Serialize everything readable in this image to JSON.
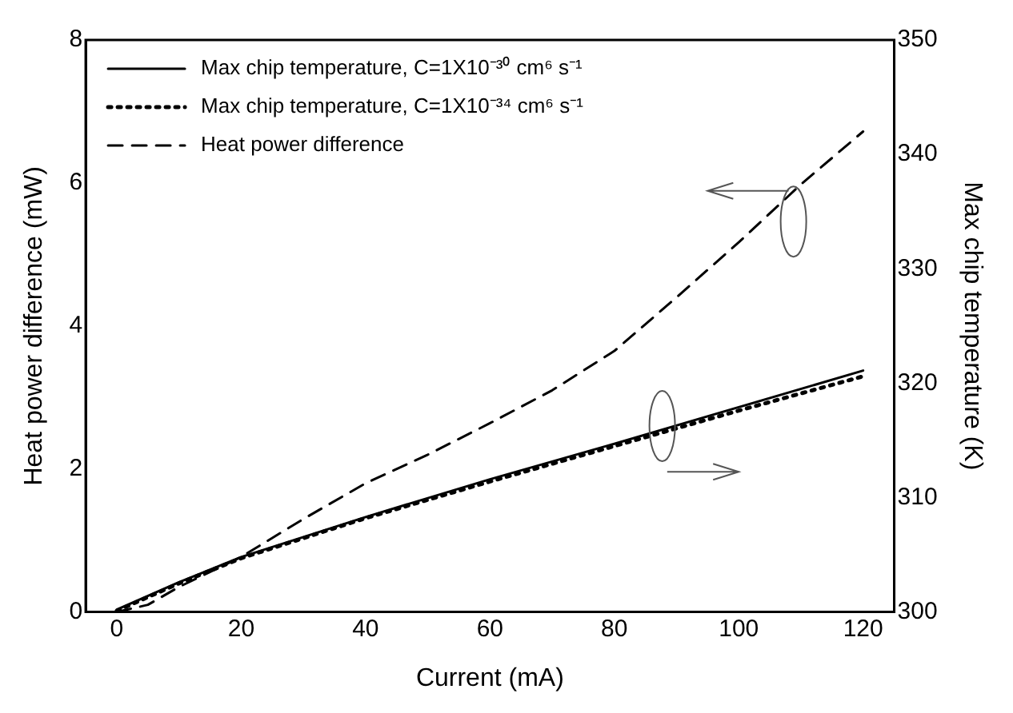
{
  "chart_data": {
    "type": "line",
    "xlabel": "Current (mA)",
    "ylabel": "Heat power difference (mW)",
    "y2label": "Max chip temperature (K)",
    "xlim": [
      -5,
      125
    ],
    "xticks": [
      0,
      20,
      40,
      60,
      80,
      100,
      120
    ],
    "ylim": [
      0,
      8
    ],
    "yticks": [
      0,
      2,
      4,
      6,
      8
    ],
    "y2lim": [
      300,
      350
    ],
    "y2ticks": [
      300,
      310,
      320,
      330,
      340,
      350
    ],
    "grid": false,
    "legend": "top left",
    "marker": "none",
    "series": [
      {
        "name": "Max chip temperature, C=1X10⁻³⁰ cm⁶ s⁻¹",
        "color": "#000000",
        "line_style": "solid",
        "axis": "y2",
        "x": [
          0,
          10,
          20,
          40,
          60,
          80,
          100,
          120
        ],
        "values": [
          300.2,
          302.6,
          304.8,
          308.3,
          311.6,
          314.7,
          317.9,
          321.1
        ]
      },
      {
        "name": "Max chip temperature, C=1X10⁻³⁴ cm⁶ s⁻¹",
        "color": "#000000",
        "line_style": "dotted",
        "axis": "y2",
        "x": [
          0,
          10,
          20,
          40,
          60,
          80,
          100,
          120
        ],
        "values": [
          300.1,
          302.5,
          304.7,
          308.2,
          311.4,
          314.5,
          317.6,
          320.6
        ]
      },
      {
        "name": "Heat power difference",
        "color": "#000000",
        "line_style": "dashed",
        "x": [
          0,
          5,
          10,
          20,
          30,
          40,
          50,
          60,
          70,
          80,
          90,
          100,
          110,
          120
        ],
        "values": [
          0,
          0.1,
          0.35,
          0.77,
          1.3,
          1.8,
          2.2,
          2.64,
          3.1,
          3.65,
          4.4,
          5.17,
          5.98,
          6.72
        ]
      }
    ]
  }
}
